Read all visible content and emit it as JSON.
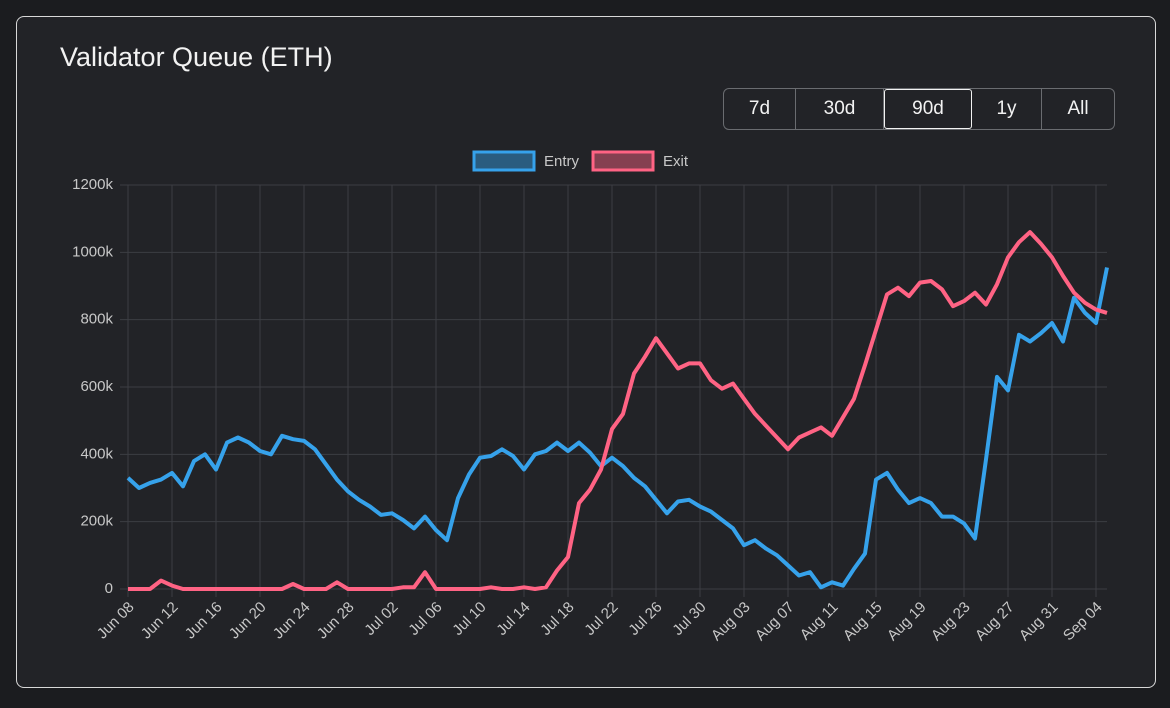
{
  "header": {
    "title": "Validator Queue (ETH)"
  },
  "range_buttons": {
    "options": [
      "7d",
      "30d",
      "90d",
      "1y",
      "All"
    ],
    "selected": 2
  },
  "chart_data": {
    "type": "line",
    "categories": [
      "Jun 08",
      null,
      null,
      null,
      "Jun 12",
      null,
      null,
      null,
      "Jun 16",
      null,
      null,
      null,
      "Jun 20",
      null,
      null,
      null,
      "Jun 24",
      null,
      null,
      null,
      "Jun 28",
      null,
      null,
      null,
      "Jul 02",
      null,
      null,
      null,
      "Jul 06",
      null,
      null,
      null,
      "Jul 10",
      null,
      null,
      null,
      "Jul 14",
      null,
      null,
      null,
      "Jul 18",
      null,
      null,
      null,
      "Jul 22",
      null,
      null,
      null,
      "Jul 26",
      null,
      null,
      null,
      "Jul 30",
      null,
      null,
      null,
      "Aug 03",
      null,
      null,
      null,
      "Aug 07",
      null,
      null,
      null,
      "Aug 11",
      null,
      null,
      null,
      "Aug 15",
      null,
      null,
      null,
      "Aug 19",
      null,
      null,
      null,
      "Aug 23",
      null,
      null,
      null,
      "Aug 27",
      null,
      null,
      null,
      "Aug 31",
      null,
      null,
      null,
      "Sep 04",
      null
    ],
    "series": [
      {
        "name": "Entry",
        "color": "#36a2eb",
        "values": [
          330000,
          300000,
          315000,
          325000,
          345000,
          305000,
          380000,
          400000,
          355000,
          435000,
          450000,
          435000,
          410000,
          400000,
          455000,
          445000,
          440000,
          415000,
          370000,
          325000,
          290000,
          265000,
          245000,
          220000,
          225000,
          205000,
          180000,
          215000,
          175000,
          145000,
          270000,
          340000,
          390000,
          395000,
          415000,
          395000,
          355000,
          400000,
          410000,
          435000,
          410000,
          435000,
          405000,
          365000,
          390000,
          365000,
          330000,
          305000,
          265000,
          225000,
          260000,
          265000,
          245000,
          230000,
          205000,
          180000,
          130000,
          145000,
          120000,
          100000,
          70000,
          40000,
          50000,
          5000,
          20000,
          10000,
          60000,
          105000,
          325000,
          345000,
          295000,
          255000,
          270000,
          255000,
          215000,
          215000,
          195000,
          150000,
          385000,
          630000,
          590000,
          755000,
          735000,
          760000,
          790000,
          735000,
          865000,
          820000,
          790000,
          955000
        ]
      },
      {
        "name": "Exit",
        "color": "#ff6384",
        "values": [
          0,
          0,
          0,
          25000,
          10000,
          0,
          0,
          0,
          0,
          0,
          0,
          0,
          0,
          0,
          0,
          15000,
          0,
          0,
          0,
          20000,
          0,
          0,
          0,
          0,
          0,
          5000,
          5000,
          50000,
          0,
          0,
          0,
          0,
          0,
          5000,
          0,
          0,
          5000,
          0,
          5000,
          55000,
          95000,
          255000,
          295000,
          355000,
          475000,
          520000,
          640000,
          690000,
          745000,
          700000,
          655000,
          670000,
          670000,
          620000,
          595000,
          610000,
          565000,
          520000,
          485000,
          450000,
          415000,
          450000,
          465000,
          480000,
          455000,
          510000,
          565000,
          665000,
          770000,
          875000,
          895000,
          870000,
          910000,
          915000,
          890000,
          840000,
          855000,
          880000,
          845000,
          905000,
          985000,
          1030000,
          1060000,
          1025000,
          985000,
          930000,
          880000,
          850000,
          830000,
          820000
        ]
      }
    ],
    "ylim": [
      0,
      1200000
    ],
    "yticks": [
      {
        "value": 0,
        "label": "0"
      },
      {
        "value": 200000,
        "label": "200k"
      },
      {
        "value": 400000,
        "label": "400k"
      },
      {
        "value": 600000,
        "label": "600k"
      },
      {
        "value": 800000,
        "label": "800k"
      },
      {
        "value": 1000000,
        "label": "1000k"
      },
      {
        "value": 1200000,
        "label": "1200k"
      }
    ],
    "grid": true
  }
}
